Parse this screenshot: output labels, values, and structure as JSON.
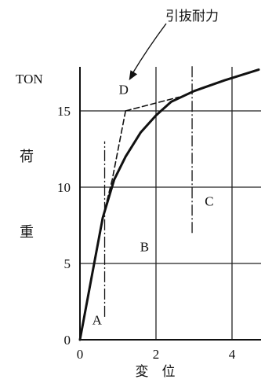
{
  "chart_data": {
    "type": "line",
    "annotation": "引抜耐力",
    "y_unit": "TON",
    "ylabel": "荷\n重",
    "xlabel": "変　位",
    "x_ticks": [
      "0",
      "2",
      "4"
    ],
    "y_ticks": [
      "0",
      "5",
      "10",
      "15"
    ],
    "xlim": [
      0,
      4.75
    ],
    "ylim": [
      0,
      17.5
    ],
    "grid": true,
    "series": [
      {
        "style": "solid",
        "points": [
          [
            0,
            0
          ],
          [
            0.3,
            4
          ],
          [
            0.6,
            8
          ],
          [
            0.9,
            10.5
          ],
          [
            1.2,
            12
          ],
          [
            1.6,
            13.6
          ],
          [
            2.0,
            14.7
          ],
          [
            2.4,
            15.6
          ],
          [
            3.0,
            16.3
          ],
          [
            3.8,
            17.0
          ],
          [
            4.7,
            17.7
          ]
        ]
      },
      {
        "style": "dashed",
        "points": [
          [
            0.6,
            8
          ],
          [
            0.85,
            10.5
          ],
          [
            1.2,
            15
          ]
        ]
      },
      {
        "style": "dashed",
        "points": [
          [
            1.2,
            15
          ],
          [
            2.6,
            15.9
          ]
        ]
      }
    ],
    "dash_dot_verticals": [
      {
        "x": 0.65,
        "y_from": 1.5,
        "y_to": 13.0
      },
      {
        "x": 2.95,
        "y_from": 7.0,
        "y_to": 18.0
      }
    ],
    "region_labels": [
      {
        "text": "A",
        "x": 0.45,
        "y": 1.0
      },
      {
        "text": "B",
        "x": 1.7,
        "y": 5.8
      },
      {
        "text": "C",
        "x": 3.4,
        "y": 8.8
      },
      {
        "text": "D",
        "x": 1.15,
        "y": 16.1
      }
    ],
    "arrow_target": {
      "x": 1.25,
      "y": 16.8
    }
  }
}
